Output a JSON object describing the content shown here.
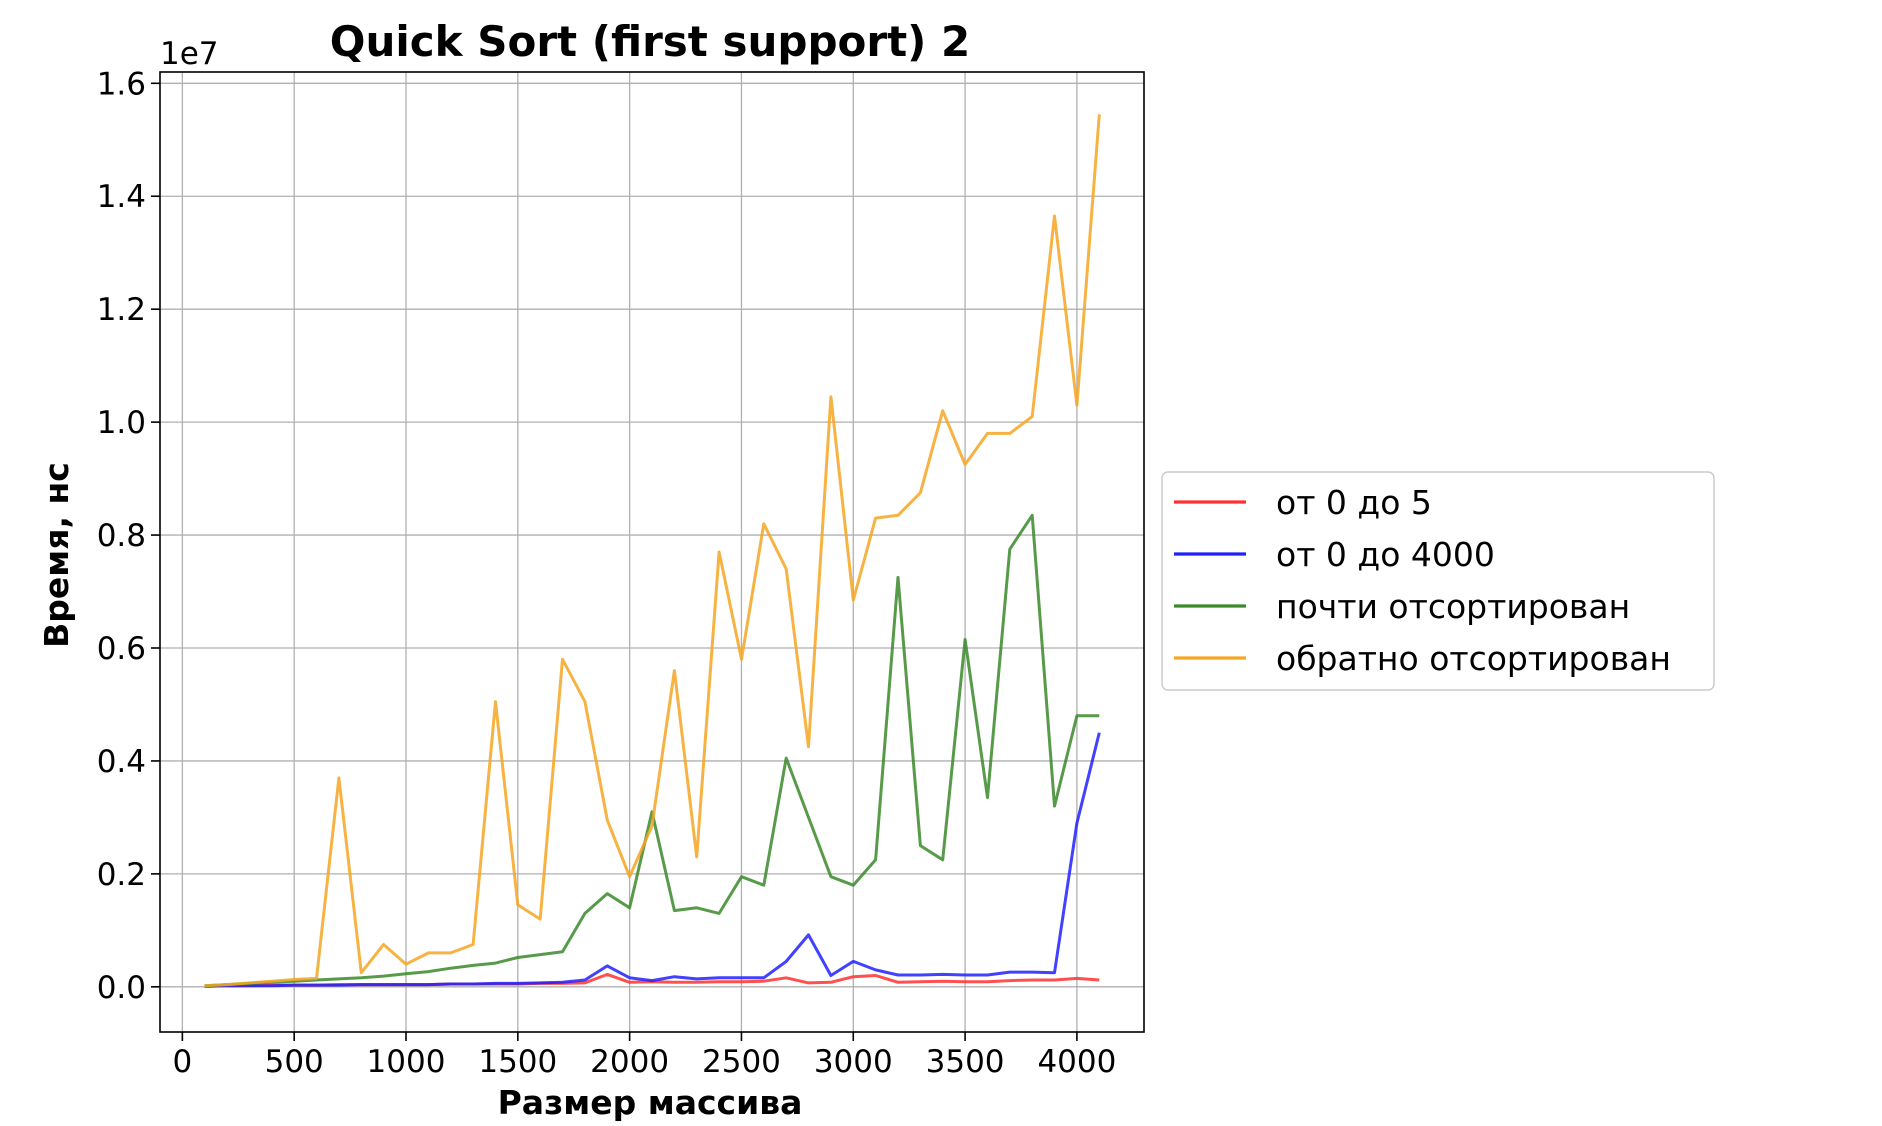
{
  "chart_data": {
    "type": "line",
    "title": "Quick Sort (first support) 2",
    "xlabel": "Размер массива",
    "ylabel": "Время, нс",
    "y_offset_label": "1e7",
    "xlim": [
      -100,
      4300
    ],
    "ylim": [
      -0.08,
      1.62
    ],
    "y_scale": 10000000,
    "x_ticks": [
      0,
      500,
      1000,
      1500,
      2000,
      2500,
      3000,
      3500,
      4000
    ],
    "x_tick_labels": [
      "0",
      "500",
      "1000",
      "1500",
      "2000",
      "2500",
      "3000",
      "3500",
      "4000"
    ],
    "y_ticks": [
      0.0,
      0.2,
      0.4,
      0.6,
      0.8,
      1.0,
      1.2,
      1.4,
      1.6
    ],
    "y_tick_labels": [
      "0.0",
      "0.2",
      "0.4",
      "0.6",
      "0.8",
      "1.0",
      "1.2",
      "1.4",
      "1.6"
    ],
    "grid": true,
    "legend_position": "right",
    "x": [
      100,
      200,
      300,
      400,
      500,
      600,
      700,
      800,
      900,
      1000,
      1100,
      1200,
      1300,
      1400,
      1500,
      1600,
      1700,
      1800,
      1900,
      2000,
      2100,
      2200,
      2300,
      2400,
      2500,
      2600,
      2700,
      2800,
      2900,
      3000,
      3100,
      3200,
      3300,
      3400,
      3500,
      3600,
      3700,
      3800,
      3900,
      4000,
      4100
    ],
    "series": [
      {
        "name": "от 0 до 5",
        "color": "#ff3030",
        "values": [
          0.001,
          0.002,
          0.002,
          0.003,
          0.003,
          0.003,
          0.004,
          0.004,
          0.004,
          0.004,
          0.004,
          0.005,
          0.005,
          0.005,
          0.005,
          0.006,
          0.006,
          0.007,
          0.022,
          0.008,
          0.009,
          0.008,
          0.008,
          0.009,
          0.009,
          0.01,
          0.016,
          0.007,
          0.008,
          0.018,
          0.02,
          0.008,
          0.009,
          0.01,
          0.009,
          0.009,
          0.011,
          0.012,
          0.012,
          0.015,
          0.012
        ]
      },
      {
        "name": "от 0 до 4000",
        "color": "#2020ff",
        "values": [
          0.001,
          0.002,
          0.002,
          0.002,
          0.003,
          0.003,
          0.003,
          0.004,
          0.004,
          0.004,
          0.004,
          0.005,
          0.005,
          0.006,
          0.006,
          0.007,
          0.008,
          0.012,
          0.037,
          0.016,
          0.011,
          0.018,
          0.014,
          0.016,
          0.016,
          0.016,
          0.045,
          0.092,
          0.02,
          0.045,
          0.03,
          0.021,
          0.021,
          0.022,
          0.021,
          0.021,
          0.026,
          0.026,
          0.025,
          0.29,
          0.45
        ]
      },
      {
        "name": "почти отсортирован",
        "color": "#3a8a2a",
        "values": [
          0.002,
          0.004,
          0.006,
          0.008,
          0.01,
          0.012,
          0.014,
          0.016,
          0.019,
          0.023,
          0.027,
          0.033,
          0.038,
          0.042,
          0.052,
          0.057,
          0.062,
          0.13,
          0.165,
          0.14,
          0.31,
          0.135,
          0.14,
          0.13,
          0.195,
          0.18,
          0.405,
          0.3,
          0.195,
          0.18,
          0.225,
          0.725,
          0.25,
          0.225,
          0.615,
          0.335,
          0.775,
          0.835,
          0.32,
          0.48,
          0.48
        ]
      },
      {
        "name": "обратно отсортирован",
        "color": "#f5a623",
        "values": [
          0.002,
          0.004,
          0.007,
          0.01,
          0.013,
          0.015,
          0.37,
          0.025,
          0.075,
          0.04,
          0.06,
          0.06,
          0.075,
          0.505,
          0.145,
          0.12,
          0.58,
          0.505,
          0.295,
          0.195,
          0.285,
          0.56,
          0.23,
          0.77,
          0.58,
          0.82,
          0.74,
          0.425,
          1.045,
          0.685,
          0.83,
          0.835,
          0.875,
          1.02,
          0.925,
          0.98,
          0.98,
          1.01,
          1.365,
          1.03,
          1.545
        ]
      }
    ]
  }
}
